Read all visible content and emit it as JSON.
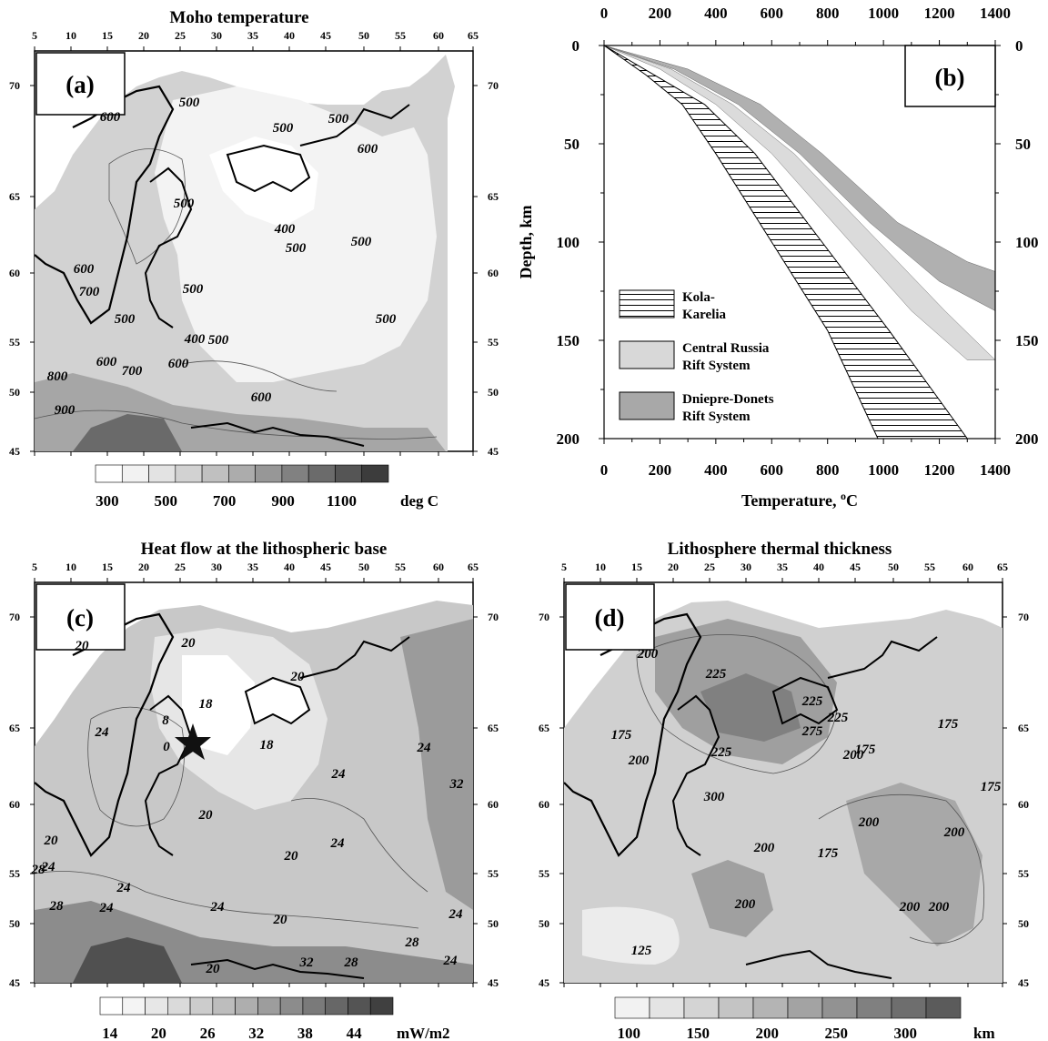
{
  "panels": {
    "a": {
      "title": "Moho temperature",
      "label": "(a)",
      "lon_ticks": [
        "5",
        "10",
        "15",
        "20",
        "25",
        "30",
        "35",
        "40",
        "45",
        "50",
        "55",
        "60",
        "65"
      ],
      "lat_ticks": [
        "70",
        "65",
        "60",
        "55",
        "50",
        "45"
      ],
      "contour_labels": [
        "600",
        "500",
        "500",
        "500",
        "600",
        "500",
        "400",
        "500",
        "500",
        "600",
        "700",
        "500",
        "500",
        "400",
        "500",
        "600",
        "500",
        "600",
        "800",
        "700",
        "900",
        "600"
      ],
      "colorbar": {
        "ticks": [
          "300",
          "500",
          "700",
          "900",
          "1100"
        ],
        "unit": "deg C",
        "colors": [
          "#ffffff",
          "#f2f2f2",
          "#e3e3e3",
          "#d2d2d2",
          "#c0c0c0",
          "#acacac",
          "#979797",
          "#818181",
          "#6b6b6b",
          "#555555",
          "#3c3c3c"
        ]
      }
    },
    "b": {
      "title": "",
      "label": "(b)"
    },
    "c": {
      "title": "Heat flow at the lithospheric base",
      "label": "(c)",
      "lon_ticks": [
        "5",
        "10",
        "15",
        "20",
        "25",
        "30",
        "35",
        "40",
        "45",
        "50",
        "55",
        "60",
        "65"
      ],
      "lat_ticks": [
        "70",
        "65",
        "60",
        "55",
        "50",
        "45"
      ],
      "contour_labels": [
        "20",
        "20",
        "18",
        "20",
        "24",
        "8",
        "24",
        "18",
        "0",
        "20",
        "28",
        "24",
        "20",
        "24",
        "24",
        "20",
        "24",
        "32",
        "28",
        "28",
        "24",
        "20",
        "24",
        "20",
        "24",
        "32",
        "28",
        "24"
      ],
      "colorbar": {
        "ticks": [
          "14",
          "20",
          "26",
          "32",
          "38",
          "44"
        ],
        "unit": "mW/m2",
        "colors": [
          "#ffffff",
          "#f4f4f4",
          "#e7e7e7",
          "#dadada",
          "#cccccc",
          "#bdbdbd",
          "#aeaeae",
          "#9d9d9d",
          "#8c8c8c",
          "#7a7a7a",
          "#676767",
          "#545454",
          "#404040"
        ]
      }
    },
    "d": {
      "title": "Lithosphere thermal thickness",
      "label": "(d)",
      "lon_ticks": [
        "5",
        "10",
        "15",
        "20",
        "25",
        "30",
        "35",
        "40",
        "45",
        "50",
        "55",
        "60",
        "65"
      ],
      "lat_ticks": [
        "70",
        "65",
        "60",
        "55",
        "50",
        "45"
      ],
      "contour_labels": [
        "200",
        "225",
        "175",
        "175",
        "225",
        "275",
        "225",
        "200",
        "200",
        "225",
        "175",
        "300",
        "175",
        "200",
        "200",
        "200",
        "200",
        "175",
        "125",
        "200",
        "200"
      ],
      "colorbar": {
        "ticks": [
          "100",
          "150",
          "200",
          "250",
          "300"
        ],
        "unit": "km",
        "colors": [
          "#f2f2f2",
          "#e4e4e4",
          "#d4d4d4",
          "#c4c4c4",
          "#b4b4b4",
          "#a3a3a3",
          "#929292",
          "#808080",
          "#6e6e6e",
          "#5b5b5b"
        ]
      }
    }
  },
  "chart_data": {
    "type": "area",
    "xlabel": "Temperature, ",
    "xlabel_sup": "o",
    "xlabel_unit": "C",
    "ylabel": "Depth, km",
    "xlim": [
      0,
      1400
    ],
    "ylim": [
      0,
      200
    ],
    "x_ticks": [
      0,
      200,
      400,
      600,
      800,
      1000,
      1200,
      1400
    ],
    "y_ticks": [
      0,
      50,
      100,
      150,
      200
    ],
    "y_inverted": true,
    "series": [
      {
        "name": "Kola-\nKarelia",
        "legend_lines": [
          "Kola-",
          "Karelia"
        ],
        "fill": "hatch",
        "lower": [
          [
            0,
            0
          ],
          [
            150,
            15
          ],
          [
            280,
            30
          ],
          [
            400,
            55
          ],
          [
            600,
            100
          ],
          [
            800,
            145
          ],
          [
            980,
            200
          ]
        ],
        "upper": [
          [
            0,
            0
          ],
          [
            180,
            15
          ],
          [
            360,
            30
          ],
          [
            540,
            55
          ],
          [
            780,
            100
          ],
          [
            1020,
            145
          ],
          [
            1300,
            200
          ]
        ]
      },
      {
        "name": "Central Russia\nRift System",
        "legend_lines": [
          "Central Russia",
          "Rift System"
        ],
        "fill": "#d8d8d8",
        "lower": [
          [
            0,
            0
          ],
          [
            200,
            12
          ],
          [
            400,
            30
          ],
          [
            600,
            55
          ],
          [
            850,
            95
          ],
          [
            1100,
            135
          ],
          [
            1300,
            160
          ]
        ],
        "upper": [
          [
            0,
            0
          ],
          [
            240,
            12
          ],
          [
            460,
            30
          ],
          [
            680,
            55
          ],
          [
            950,
            95
          ],
          [
            1220,
            135
          ],
          [
            1400,
            160
          ]
        ]
      },
      {
        "name": "Dniepre-Donets\nRift System",
        "legend_lines": [
          "Dniepre-Donets",
          "Rift System"
        ],
        "fill": "#a8a8a8",
        "lower": [
          [
            0,
            0
          ],
          [
            250,
            12
          ],
          [
            480,
            30
          ],
          [
            700,
            55
          ],
          [
            950,
            90
          ],
          [
            1200,
            120
          ],
          [
            1400,
            135
          ]
        ],
        "upper": [
          [
            0,
            0
          ],
          [
            300,
            12
          ],
          [
            560,
            30
          ],
          [
            780,
            55
          ],
          [
            1050,
            90
          ],
          [
            1300,
            110
          ],
          [
            1400,
            115
          ]
        ]
      }
    ]
  }
}
